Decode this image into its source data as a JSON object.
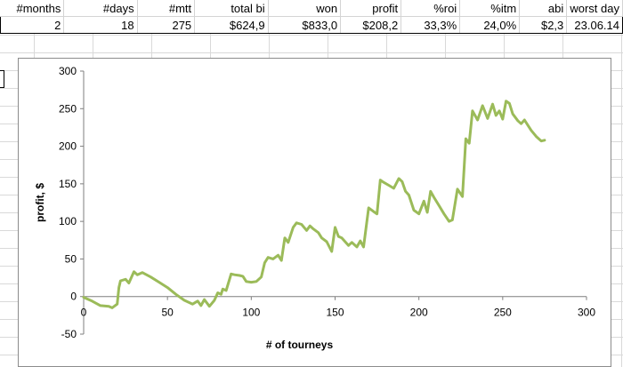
{
  "table": {
    "headers": [
      "#months",
      "#days",
      "#mtt",
      "total bi",
      "won",
      "profit",
      "%roi",
      "%itm",
      "abi",
      "worst day"
    ],
    "values": [
      "2",
      "18",
      "275",
      "$624,9",
      "$833,0",
      "$208,2",
      "33,3%",
      "24,0%",
      "$2,3",
      "23.06.14"
    ]
  },
  "chart_data": {
    "type": "line",
    "title": "",
    "xlabel": "# of tourneys",
    "ylabel": "profit, $",
    "xlim": [
      0,
      300
    ],
    "ylim": [
      -50,
      300
    ],
    "x_ticks": [
      0,
      50,
      100,
      150,
      200,
      250,
      300
    ],
    "y_ticks": [
      -50,
      0,
      50,
      100,
      150,
      200,
      250,
      300
    ],
    "grid": false,
    "legend": "none",
    "color": "#9bbb59",
    "series": [
      {
        "x": [
          0,
          5,
          10,
          15,
          17,
          20,
          21,
          22,
          25,
          27,
          30,
          32,
          35,
          40,
          45,
          50,
          55,
          60,
          65,
          68,
          70,
          72,
          75,
          78,
          80,
          82,
          83,
          85,
          88,
          90,
          93,
          95,
          97,
          100,
          103,
          106,
          108,
          110,
          113,
          116,
          118,
          120,
          122,
          125,
          127,
          130,
          133,
          135,
          137,
          140,
          142,
          145,
          148,
          150,
          152,
          154,
          158,
          160,
          163,
          165,
          167,
          170,
          173,
          175,
          177,
          179,
          182,
          185,
          188,
          190,
          192,
          194,
          197,
          200,
          203,
          205,
          207,
          209,
          212,
          215,
          218,
          220,
          223,
          226,
          228,
          230,
          232,
          235,
          237,
          238,
          241,
          244,
          246,
          248,
          250,
          252,
          254,
          256,
          259,
          261,
          263,
          265,
          267,
          270,
          273,
          275
        ],
        "y": [
          -1,
          -6,
          -12,
          -13,
          -15,
          -10,
          12,
          21,
          23,
          18,
          33,
          29,
          32,
          26,
          19,
          12,
          3,
          -5,
          -10,
          -6,
          -12,
          -4,
          -13,
          -5,
          5,
          3,
          10,
          8,
          30,
          29,
          28,
          27,
          20,
          19,
          20,
          26,
          45,
          52,
          50,
          55,
          48,
          78,
          72,
          92,
          98,
          96,
          88,
          94,
          90,
          85,
          78,
          73,
          60,
          92,
          80,
          78,
          68,
          72,
          66,
          74,
          66,
          118,
          113,
          110,
          155,
          152,
          148,
          144,
          157,
          153,
          140,
          135,
          115,
          110,
          127,
          112,
          140,
          132,
          121,
          110,
          100,
          102,
          143,
          133,
          210,
          204,
          247,
          235,
          248,
          254,
          237,
          256,
          241,
          247,
          236,
          260,
          257,
          243,
          234,
          230,
          235,
          228,
          221,
          213,
          207,
          208
        ]
      }
    ]
  }
}
